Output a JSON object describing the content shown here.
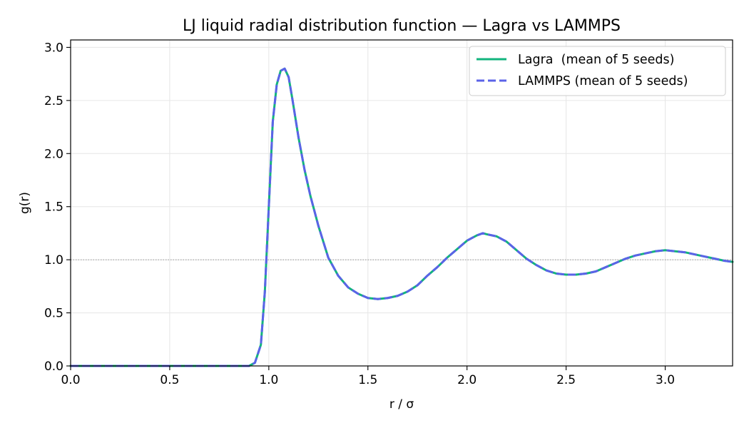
{
  "chart_data": {
    "type": "line",
    "title": "LJ liquid radial distribution function — Lagra vs LAMMPS",
    "xlabel": "r / σ",
    "ylabel": "g(r)",
    "xlim": [
      0.0,
      3.34
    ],
    "ylim": [
      0.0,
      3.07
    ],
    "x_ticks": [
      0.0,
      0.5,
      1.0,
      1.5,
      2.0,
      2.5,
      3.0
    ],
    "x_tick_labels": [
      "0.0",
      "0.5",
      "1.0",
      "1.5",
      "2.0",
      "2.5",
      "3.0"
    ],
    "y_ticks": [
      0.0,
      0.5,
      1.0,
      1.5,
      2.0,
      2.5,
      3.0
    ],
    "y_tick_labels": [
      "0.0",
      "0.5",
      "1.0",
      "1.5",
      "2.0",
      "2.5",
      "3.0"
    ],
    "grid": true,
    "reference_line": {
      "y": 1.0,
      "style": "dotted",
      "color": "#888888"
    },
    "legend": {
      "position": "top-right"
    },
    "x": [
      0.0,
      0.1,
      0.2,
      0.3,
      0.4,
      0.5,
      0.6,
      0.7,
      0.8,
      0.9,
      0.93,
      0.96,
      0.98,
      1.0,
      1.02,
      1.04,
      1.06,
      1.08,
      1.1,
      1.12,
      1.15,
      1.18,
      1.21,
      1.25,
      1.3,
      1.35,
      1.4,
      1.45,
      1.5,
      1.55,
      1.6,
      1.65,
      1.7,
      1.75,
      1.8,
      1.85,
      1.9,
      1.95,
      2.0,
      2.05,
      2.08,
      2.1,
      2.15,
      2.2,
      2.25,
      2.3,
      2.35,
      2.4,
      2.45,
      2.5,
      2.55,
      2.6,
      2.65,
      2.7,
      2.75,
      2.8,
      2.85,
      2.9,
      2.95,
      3.0,
      3.05,
      3.1,
      3.15,
      3.2,
      3.25,
      3.3,
      3.34
    ],
    "series": [
      {
        "name": "Lagra  (mean of 5 seeds)",
        "color": "#13b47d",
        "style": "solid",
        "values": [
          0.0,
          0.0,
          0.0,
          0.0,
          0.0,
          0.0,
          0.0,
          0.0,
          0.0,
          0.0,
          0.03,
          0.2,
          0.7,
          1.5,
          2.3,
          2.65,
          2.78,
          2.8,
          2.72,
          2.5,
          2.15,
          1.85,
          1.6,
          1.32,
          1.02,
          0.85,
          0.74,
          0.68,
          0.64,
          0.63,
          0.64,
          0.66,
          0.7,
          0.76,
          0.85,
          0.93,
          1.02,
          1.1,
          1.18,
          1.23,
          1.25,
          1.24,
          1.22,
          1.17,
          1.09,
          1.01,
          0.95,
          0.9,
          0.87,
          0.86,
          0.86,
          0.87,
          0.89,
          0.93,
          0.97,
          1.01,
          1.04,
          1.06,
          1.08,
          1.09,
          1.08,
          1.07,
          1.05,
          1.03,
          1.01,
          0.99,
          0.98
        ]
      },
      {
        "name": "LAMMPS (mean of 5 seeds)",
        "color": "#5b63e8",
        "style": "dashed",
        "values": [
          0.0,
          0.0,
          0.0,
          0.0,
          0.0,
          0.0,
          0.0,
          0.0,
          0.0,
          0.0,
          0.03,
          0.2,
          0.7,
          1.5,
          2.3,
          2.65,
          2.78,
          2.8,
          2.72,
          2.5,
          2.15,
          1.85,
          1.6,
          1.32,
          1.02,
          0.85,
          0.74,
          0.68,
          0.64,
          0.63,
          0.64,
          0.66,
          0.7,
          0.76,
          0.85,
          0.93,
          1.02,
          1.1,
          1.18,
          1.23,
          1.25,
          1.24,
          1.22,
          1.17,
          1.09,
          1.01,
          0.95,
          0.9,
          0.87,
          0.86,
          0.86,
          0.87,
          0.89,
          0.93,
          0.97,
          1.01,
          1.04,
          1.06,
          1.08,
          1.09,
          1.08,
          1.07,
          1.05,
          1.03,
          1.01,
          0.99,
          0.98
        ]
      }
    ]
  }
}
